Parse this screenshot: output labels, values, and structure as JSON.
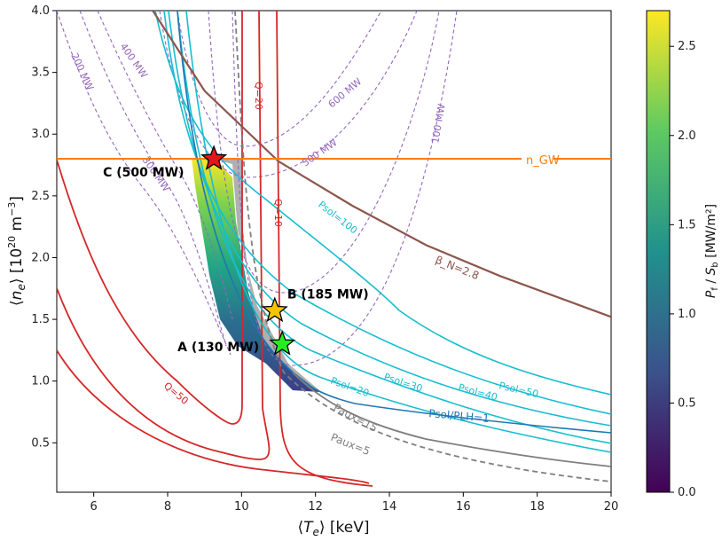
{
  "chart_data": {
    "type": "contour",
    "xlabel": "⟨T_e⟩ [keV]",
    "ylabel": "⟨n_e⟩ [10^20 m^-3]",
    "xlim": [
      5,
      20
    ],
    "ylim": [
      0.1,
      4.0
    ],
    "xticks": [
      "6",
      "8",
      "10",
      "12",
      "14",
      "16",
      "18",
      "20"
    ],
    "yticks": [
      "0.5",
      "1.0",
      "1.5",
      "2.0",
      "2.5",
      "3.0",
      "3.5",
      "4.0"
    ],
    "colorbar": {
      "label": "P_f / S_b [MW/m²]",
      "range": [
        0.0,
        2.7
      ],
      "ticks": [
        "0.0",
        "0.5",
        "1.0",
        "1.5",
        "2.0",
        "2.5"
      ],
      "colormap": [
        "#440154",
        "#3b528b",
        "#21918c",
        "#5ec962",
        "#fde725"
      ]
    },
    "greenwald_limit": {
      "label": "n_GW",
      "y": 2.8,
      "color": "#ff7f0e"
    },
    "beta_limit": {
      "label": "β_N=2.8",
      "color": "#8c564b",
      "x": [
        7.6,
        9,
        11,
        13,
        15,
        17,
        20
      ],
      "y": [
        4.0,
        3.35,
        2.78,
        2.42,
        2.1,
        1.85,
        1.52
      ]
    },
    "Q_contours": {
      "color": "#d62728",
      "labels": [
        "Q=50",
        "Q=20",
        "Q=10"
      ]
    },
    "Psol_contours": {
      "color": "#17becf",
      "labels": [
        "Psol=20",
        "Psol=30",
        "Psol=40",
        "Psol=50",
        "Psol=100"
      ]
    },
    "Psol_PLH": {
      "label": "Psol/PLH=1",
      "color": "#1f77b4"
    },
    "Paux_contours": {
      "color": "#7f7f7f",
      "labels": [
        "Paux=15",
        "Paux=5"
      ]
    },
    "fusion_power_contours": {
      "color": "#9467bd",
      "labels": [
        "200 MW",
        "400 MW",
        "300 MW",
        "600 MW",
        "500 MW",
        "100 MW"
      ]
    },
    "points": [
      {
        "label": "A (130 MW)",
        "x": 11.1,
        "y": 1.3,
        "color": "#22ee22"
      },
      {
        "label": "B (185 MW)",
        "x": 10.9,
        "y": 1.57,
        "color": "#f5c400"
      },
      {
        "label": "C (500 MW)",
        "x": 9.25,
        "y": 2.8,
        "color": "#e8141b"
      }
    ]
  }
}
